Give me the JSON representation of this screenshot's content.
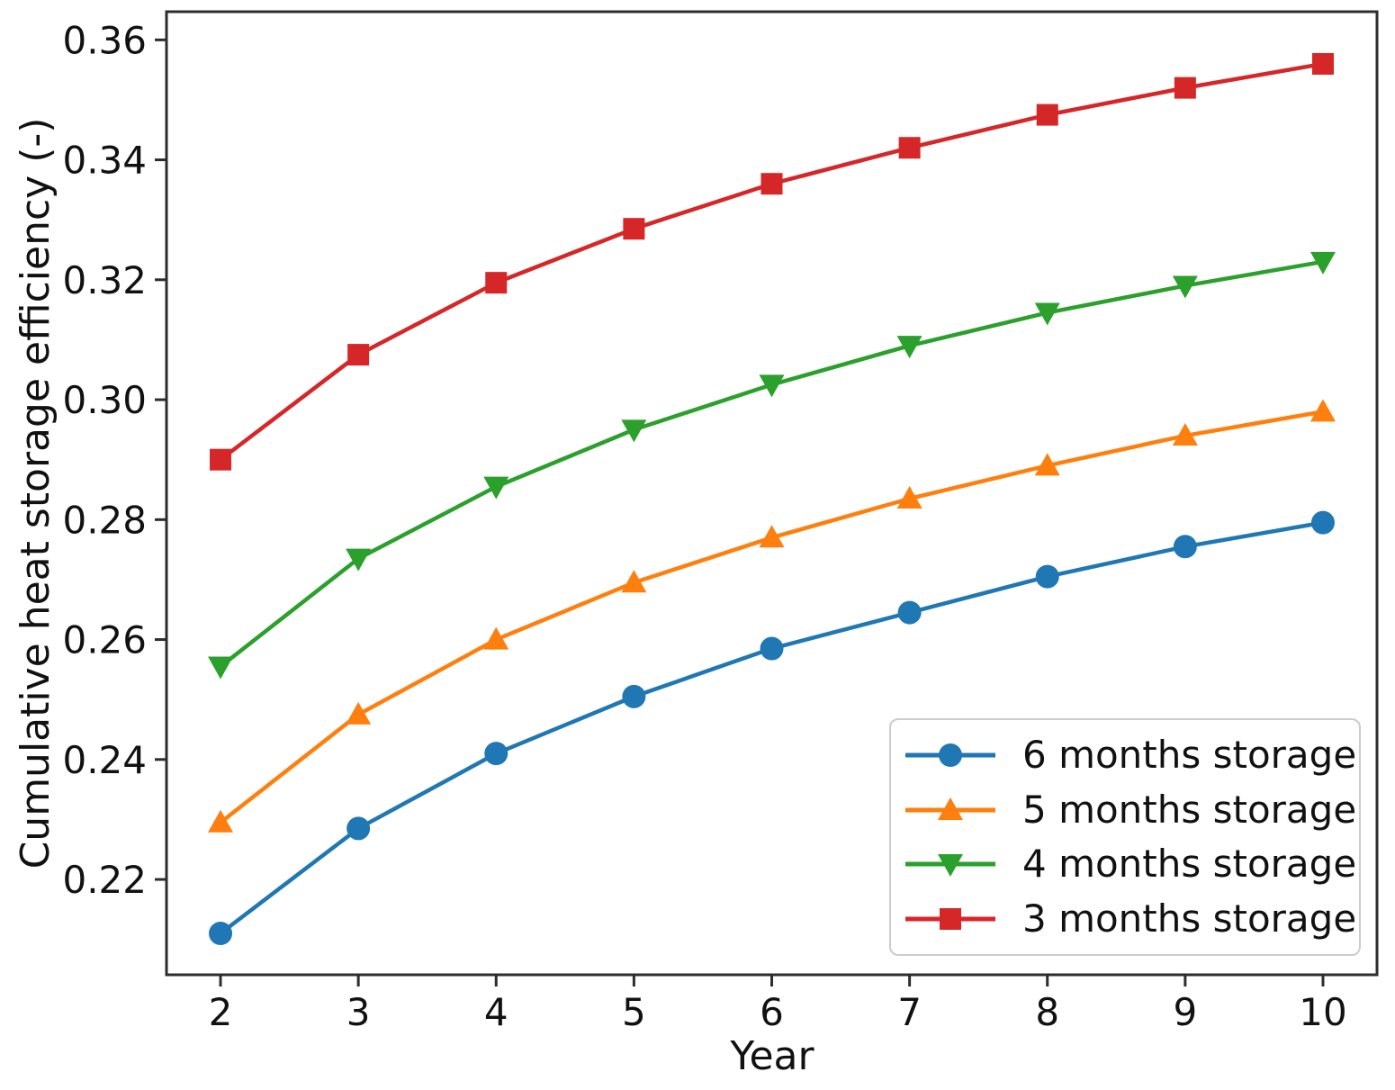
{
  "figure": {
    "background": "#ffffff"
  },
  "chart_data": {
    "type": "line",
    "title": "",
    "xlabel": "Year",
    "ylabel": "Cumulative heat storage efficiency (-)",
    "x": [
      2,
      3,
      4,
      5,
      6,
      7,
      8,
      9,
      10
    ],
    "series": [
      {
        "name": "6 months storage",
        "color": "#1f77b4",
        "marker": "circle",
        "values": [
          0.211,
          0.2285,
          0.241,
          0.2505,
          0.2585,
          0.2645,
          0.2705,
          0.2755,
          0.2795
        ]
      },
      {
        "name": "5 months storage",
        "color": "#ff7f0e",
        "marker": "triangle-up",
        "values": [
          0.2295,
          0.2475,
          0.26,
          0.2695,
          0.277,
          0.2835,
          0.289,
          0.294,
          0.298
        ]
      },
      {
        "name": "4 months storage",
        "color": "#2ca02c",
        "marker": "triangle-down",
        "values": [
          0.2555,
          0.2735,
          0.2855,
          0.295,
          0.3025,
          0.309,
          0.3145,
          0.319,
          0.323
        ]
      },
      {
        "name": "3 months storage",
        "color": "#d62728",
        "marker": "square",
        "values": [
          0.29,
          0.3075,
          0.3195,
          0.3285,
          0.336,
          0.342,
          0.3475,
          0.352,
          0.356
        ]
      }
    ],
    "xticks": [
      2,
      3,
      4,
      5,
      6,
      7,
      8,
      9,
      10
    ],
    "yticks": [
      0.22,
      0.24,
      0.26,
      0.28,
      0.3,
      0.32,
      0.34,
      0.36
    ],
    "xlim": [
      1.608,
      10.392
    ],
    "ylim": [
      0.2041,
      0.3647
    ],
    "grid": false,
    "legend_position": "lower right",
    "axis_color": "#2d2d2d",
    "tick_label_color": "#111111"
  }
}
